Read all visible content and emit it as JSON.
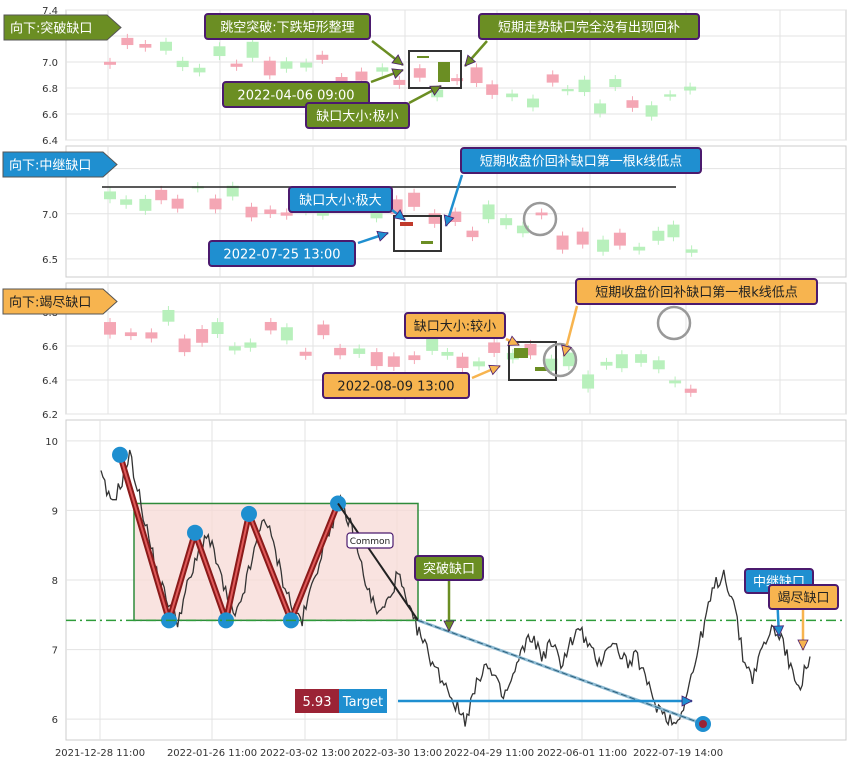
{
  "colors": {
    "up": "#f4a6b4",
    "down": "#b8f0bc",
    "zoom_up": "#c0392b",
    "zoom_down": "#6b8e23",
    "green_label": "#6b8e23",
    "blue_label": "#1f8fd0",
    "orange_label": "#f7b44f",
    "label_border": "#4b1a6e",
    "main_line": "#333333",
    "pattern_fill": "#f7d9d6",
    "pattern_border": "#2e8b3a",
    "w_line": "#8b1a1a",
    "neck_line": "#2e9c3a",
    "target_red": "#9b2335",
    "target_blue": "#1f8fd0",
    "pivot": "#1f8fd0"
  },
  "panels": [
    {
      "tag": "向下:突破缺口",
      "tag_color": "green",
      "yticks": [
        "6.4",
        "6.6",
        "6.8",
        "7.0",
        "7.2",
        "7.4"
      ],
      "ylim": [
        6.4,
        7.4
      ],
      "annotations": [
        "跳空突破:下跌矩形整理",
        "短期走势缺口完全没有出现回补",
        "2022-04-06 09:00",
        "缺口大小:极小"
      ]
    },
    {
      "tag": "向下:中继缺口",
      "tag_color": "blue",
      "yticks": [
        "6.5",
        "7.0",
        "7.5"
      ],
      "ylim": [
        6.3,
        7.75
      ],
      "annotations": [
        "缺口大小:极大",
        "短期收盘价回补缺口第一根k线低点",
        "2022-07-25 13:00"
      ]
    },
    {
      "tag": "向下:竭尽缺口",
      "tag_color": "orange",
      "yticks": [
        "6.2",
        "6.4",
        "6.6",
        "6.8"
      ],
      "ylim": [
        6.2,
        6.97
      ],
      "annotations": [
        "缺口大小:较小",
        "短期收盘价回补缺口第一根k线低点",
        "2022-08-09 13:00"
      ]
    }
  ],
  "chart_data": {
    "type": "line",
    "x_ticks": [
      "2021-12-28 11:00",
      "2022-01-26 11:00",
      "2022-03-02 13:00",
      "2022-03-30 13:00",
      "2022-04-29 11:00",
      "2022-06-01 11:00",
      "2022-07-19 14:00"
    ],
    "yticks": [
      "6",
      "7",
      "8",
      "9",
      "10"
    ],
    "ylim": [
      5.7,
      10.3
    ],
    "neckline": 7.42,
    "rectangle": [
      7.42,
      9.1
    ],
    "target": 5.93,
    "target_value_label": "5.93",
    "target_label": "Target",
    "pattern_label": "Common",
    "gap_labels": [
      "突破缺口",
      "中继缺口",
      "竭尽缺口"
    ],
    "w_pivots": [
      9.8,
      7.42,
      8.68,
      7.42,
      8.95,
      7.42,
      9.1
    ],
    "price": [
      9.5,
      9.1,
      9.35,
      9.8,
      9.2,
      8.6,
      8.0,
      7.7,
      7.42,
      7.9,
      8.3,
      8.68,
      8.3,
      7.8,
      7.42,
      7.9,
      8.4,
      8.95,
      8.5,
      8.0,
      7.6,
      7.42,
      7.9,
      8.4,
      8.8,
      9.1,
      8.8,
      8.3,
      7.8,
      7.5,
      7.7,
      8.1,
      7.6,
      7.3,
      7.0,
      6.7,
      6.5,
      6.2,
      6.0,
      6.4,
      6.8,
      6.6,
      6.3,
      6.6,
      7.0,
      7.2,
      6.9,
      7.1,
      6.8,
      7.1,
      7.3,
      7.0,
      6.8,
      7.1,
      7.0,
      6.8,
      6.9,
      6.5,
      6.2,
      6.05,
      5.93,
      6.3,
      6.8,
      7.4,
      7.9,
      8.1,
      7.7,
      6.9,
      6.6,
      7.0,
      7.3,
      7.2,
      6.7,
      6.5,
      6.9
    ]
  }
}
